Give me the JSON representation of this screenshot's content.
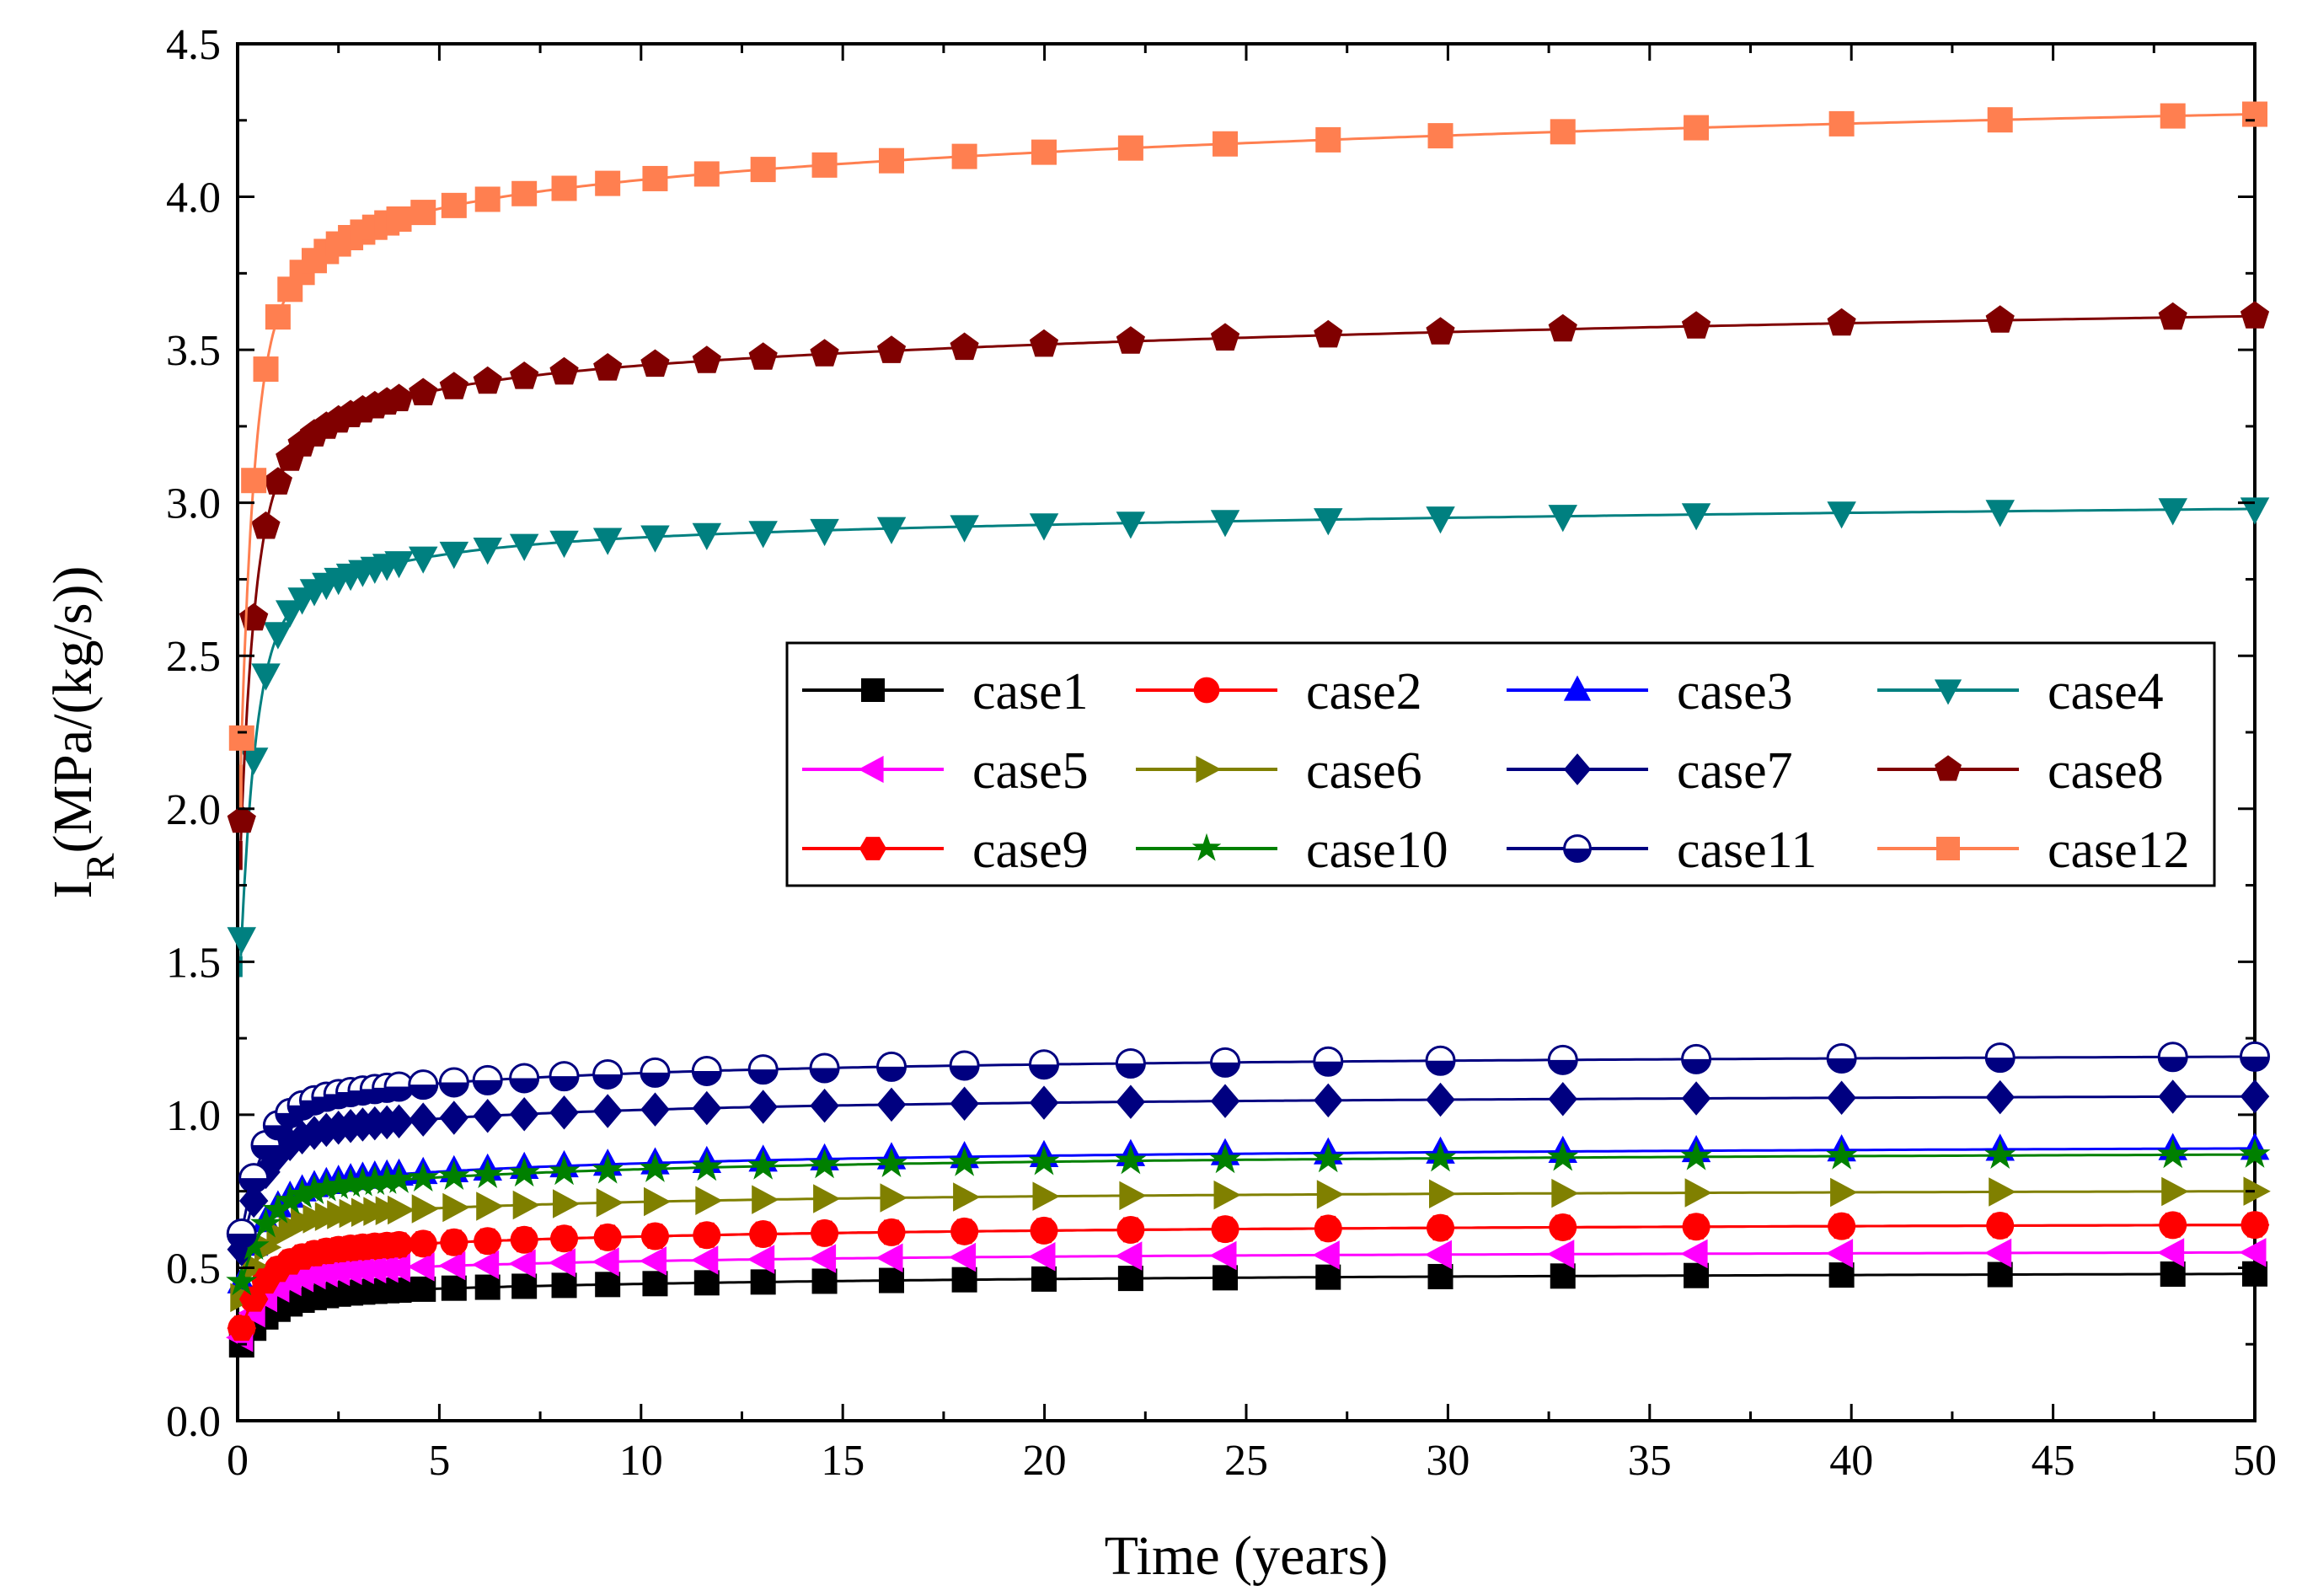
{
  "chart_data": {
    "type": "line",
    "xlabel": "Time (years)",
    "ylabel": {
      "main": "I",
      "subscript": "R",
      "rest": "(MPa/(kg/s))"
    },
    "xlim": [
      0,
      50
    ],
    "ylim": [
      0.0,
      4.5
    ],
    "xticks": [
      "0",
      "5",
      "10",
      "15",
      "20",
      "25",
      "30",
      "35",
      "40",
      "45",
      "50"
    ],
    "yticks": [
      "0.0",
      "0.5",
      "1.0",
      "1.5",
      "2.0",
      "2.5",
      "3.0",
      "3.5",
      "4.0",
      "4.5"
    ],
    "legend_position": "center-right",
    "legend_columns": 4,
    "series": [
      {
        "name": "case1",
        "color": "#000000",
        "marker": "square",
        "y0": 0.25,
        "plateau": 0.42,
        "final": 0.48,
        "ymin": 0.26,
        "k": 4.0
      },
      {
        "name": "case2",
        "color": "#ff0000",
        "marker": "circle",
        "y0": 0.3,
        "plateau": 0.57,
        "final": 0.64,
        "ymin": 0.28,
        "k": 3.0
      },
      {
        "name": "case3",
        "color": "#0000ff",
        "marker": "triangle-up",
        "y0": 0.45,
        "plateau": 0.8,
        "final": 0.89,
        "ymin": 0.45,
        "k": 3.0
      },
      {
        "name": "case4",
        "color": "#008080",
        "marker": "triangle-down",
        "y0": 1.45,
        "plateau": 2.75,
        "final": 2.98,
        "ymin": 1.45,
        "k": 1.0
      },
      {
        "name": "case5",
        "color": "#ff00ff",
        "marker": "triangle-left",
        "y0": 0.27,
        "plateau": 0.5,
        "final": 0.55,
        "ymin": 0.27,
        "k": 3.0
      },
      {
        "name": "case6",
        "color": "#808000",
        "marker": "triangle-right",
        "y0": 0.4,
        "plateau": 0.69,
        "final": 0.75,
        "ymin": 0.4,
        "k": 3.0
      },
      {
        "name": "case7",
        "color": "#000080",
        "marker": "diamond",
        "y0": 0.55,
        "plateau": 0.98,
        "final": 1.06,
        "ymin": 0.55,
        "k": 2.5
      },
      {
        "name": "case8",
        "color": "#800000",
        "marker": "pentagon",
        "y0": 1.8,
        "plateau": 3.2,
        "final": 3.61,
        "ymin": 1.8,
        "k": 0.8
      },
      {
        "name": "case9",
        "color": "#ff0000",
        "marker": "hexagon",
        "y0": 0.3,
        "plateau": 0.57,
        "final": 0.64,
        "ymin": 0.28,
        "k": 3.0
      },
      {
        "name": "case10",
        "color": "#008000",
        "marker": "star",
        "y0": 0.45,
        "plateau": 0.78,
        "final": 0.87,
        "ymin": 0.45,
        "k": 3.0
      },
      {
        "name": "case11",
        "color": "#000080",
        "marker": "half-circle",
        "y0": 0.6,
        "plateau": 1.09,
        "final": 1.19,
        "ymin": 0.6,
        "k": 2.5
      },
      {
        "name": "case12",
        "color": "#ff7f50",
        "marker": "square",
        "y0": 2.0,
        "plateau": 3.72,
        "final": 4.27,
        "ymin": 2.0,
        "k": 0.6
      }
    ]
  }
}
